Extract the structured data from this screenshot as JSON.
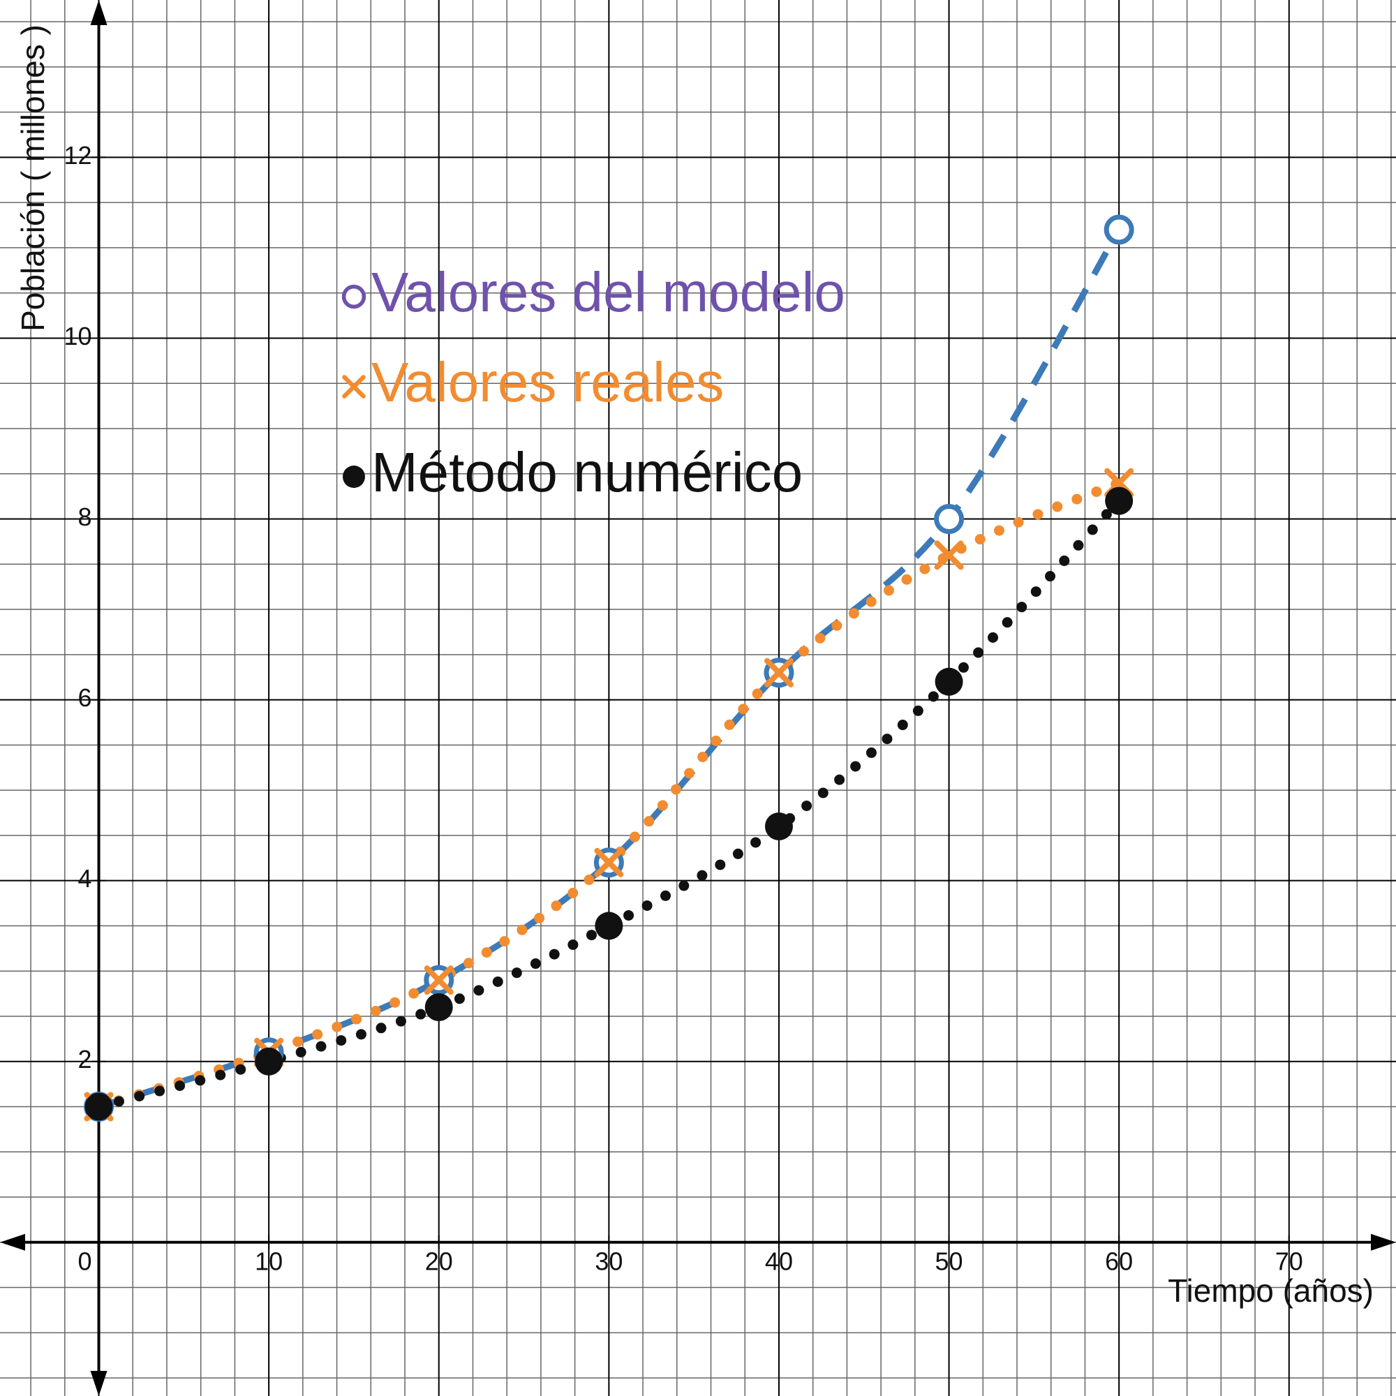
{
  "chart_data": {
    "type": "line",
    "x_label": "Tiempo (años)",
    "y_label": "Población ( millones )",
    "x": [
      0,
      10,
      20,
      30,
      40,
      50,
      60
    ],
    "series": [
      {
        "name": "Valores del modelo",
        "color": "#3d7ab8",
        "label_color": "#6f52ab",
        "marker": "circle-open",
        "line": "dashed",
        "values": [
          1.5,
          2.1,
          2.9,
          4.2,
          6.3,
          8.0,
          11.2
        ]
      },
      {
        "name": "Valores reales",
        "color": "#f28c30",
        "label_color": "#f28c30",
        "marker": "x",
        "line": "dotted",
        "values": [
          1.5,
          2.1,
          2.9,
          4.2,
          6.3,
          7.6,
          8.4
        ]
      },
      {
        "name": "Método  numérico",
        "color": "#111111",
        "label_color": "#111111",
        "marker": "dot",
        "line": "dotted",
        "values": [
          1.5,
          2.0,
          2.6,
          3.5,
          4.6,
          6.2,
          8.2
        ]
      }
    ],
    "xlim": [
      -5.81,
      76.29
    ],
    "ylim": [
      -1.7,
      13.74
    ],
    "xticks": [
      0,
      10,
      20,
      30,
      40,
      50,
      60,
      70
    ],
    "yticks": [
      2,
      4,
      6,
      8,
      10,
      12
    ],
    "grid": true
  }
}
